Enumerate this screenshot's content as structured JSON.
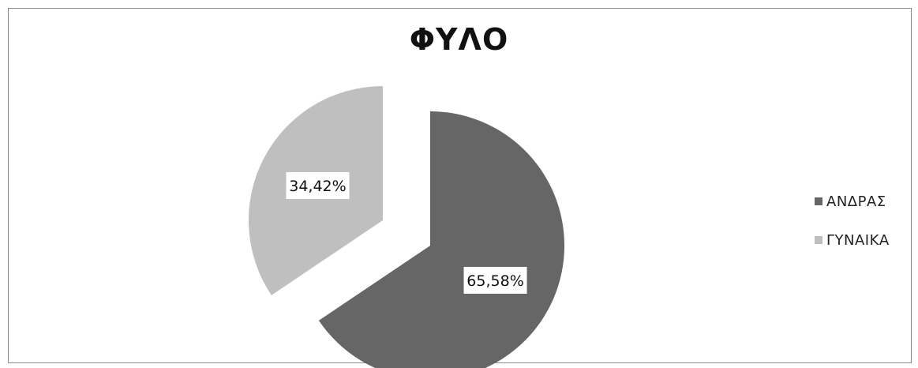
{
  "chart_data": {
    "type": "pie",
    "title": "ΦΥΛΟ",
    "categories": [
      "ΑΝΔΡΑΣ",
      "ΓΥΝΑΙΚΑ"
    ],
    "values": [
      65.58,
      34.42
    ],
    "data_labels": [
      "65,58%",
      "34,42%"
    ],
    "colors": [
      "#666666",
      "#bfbfbf"
    ],
    "exploded": true,
    "legend_position": "right"
  }
}
